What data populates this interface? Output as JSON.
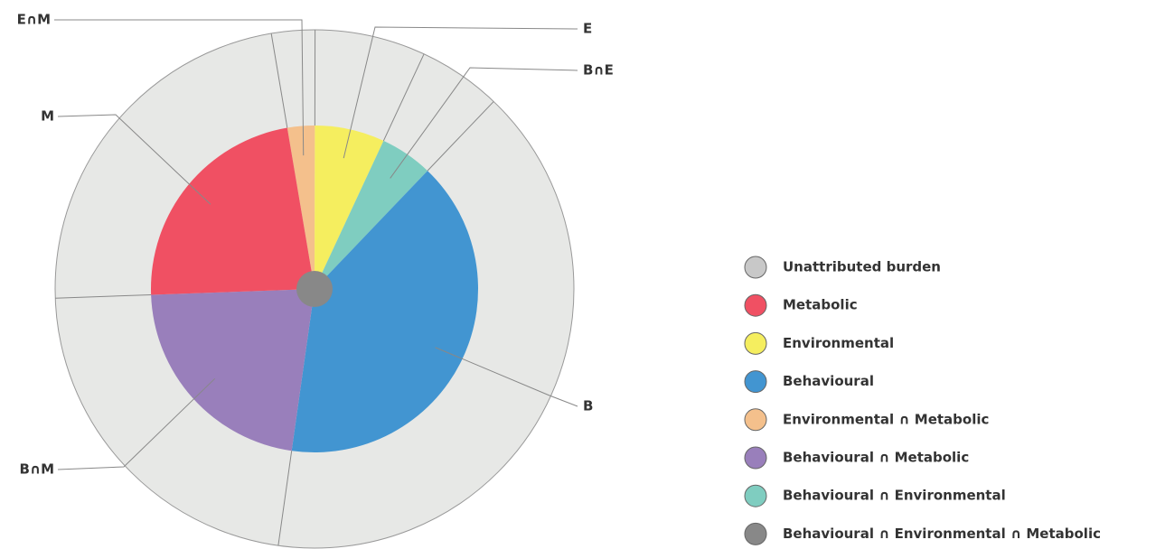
{
  "chart_data": {
    "type": "pie",
    "series": [
      {
        "name": "Unattributed burden",
        "color": "#c8c8c8"
      },
      {
        "name": "Metabolic",
        "color": "#f05063",
        "label": "M",
        "value": 22.9
      },
      {
        "name": "Environmental",
        "color": "#f5ee5f",
        "label": "E",
        "value": 6.9
      },
      {
        "name": "Behavioural",
        "color": "#4295d1",
        "label": "B",
        "value": 40.1
      },
      {
        "name": "Environmental ∩ Metabolic",
        "color": "#f4c08c",
        "label": "E∩M",
        "value": 2.7
      },
      {
        "name": "Behavioural ∩ Metabolic",
        "color": "#997fbb",
        "label": "B∩M",
        "value": 22.2
      },
      {
        "name": "Behavioural ∩ Environmental",
        "color": "#7fcdc0",
        "label": "B∩E",
        "value": 5.2
      },
      {
        "name": "Behavioural ∩ Environmental ∩ Metabolic",
        "color": "#888888"
      }
    ]
  }
}
